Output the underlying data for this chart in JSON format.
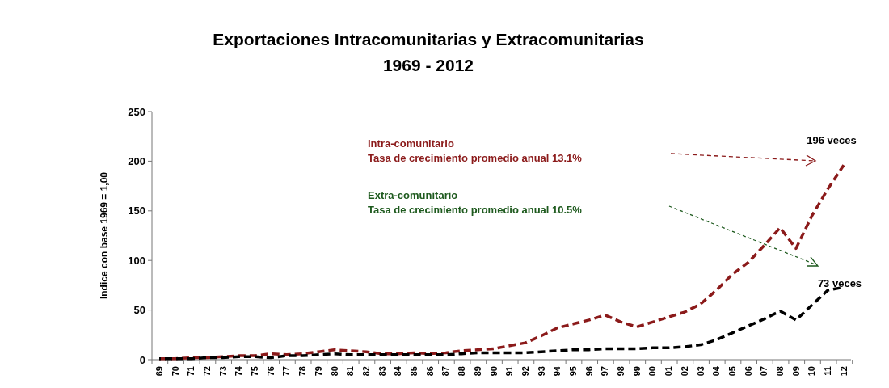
{
  "chart_data": {
    "type": "line",
    "title": "Exportaciones Intracomunitarias y Extracomunitarias",
    "subtitle": "1969 - 2012",
    "ylabel": "Indice con base 1969 = 1,00",
    "categories": [
      "69",
      "70",
      "71",
      "72",
      "73",
      "74",
      "75",
      "76",
      "77",
      "78",
      "79",
      "80",
      "81",
      "82",
      "83",
      "84",
      "85",
      "86",
      "87",
      "88",
      "89",
      "90",
      "91",
      "92",
      "93",
      "94",
      "95",
      "96",
      "97",
      "98",
      "99",
      "00",
      "01",
      "02",
      "03",
      "04",
      "05",
      "06",
      "07",
      "08",
      "09",
      "10",
      "11",
      "12"
    ],
    "series": [
      {
        "color": "#8b1a1a",
        "values": [
          1,
          1,
          2,
          2,
          3,
          4,
          4,
          6,
          5,
          6,
          8,
          10,
          9,
          8,
          6,
          6,
          7,
          6,
          7,
          9,
          10,
          11,
          14,
          17,
          24,
          32,
          36,
          40,
          45,
          38,
          33,
          38,
          43,
          48,
          56,
          70,
          86,
          98,
          115,
          133,
          112,
          145,
          172,
          196
        ]
      },
      {
        "color": "#000000",
        "values": [
          1,
          1,
          1,
          2,
          2,
          3,
          3,
          2,
          4,
          4,
          5,
          6,
          5,
          5,
          5,
          5,
          5,
          5,
          5,
          6,
          7,
          7,
          7,
          7,
          8,
          9,
          10,
          10,
          11,
          11,
          11,
          12,
          12,
          13,
          15,
          20,
          27,
          34,
          41,
          49,
          40,
          55,
          70,
          73
        ]
      }
    ],
    "ylim": [
      0,
      250
    ],
    "yticks": [
      0,
      50,
      100,
      150,
      200,
      250
    ],
    "grid": false,
    "marker": "none",
    "line_style": "dashed",
    "annotations": [
      "Intra-comunitario",
      "Tasa de crecimiento promedio anual  13.1%",
      "Extra-comunitario",
      "Tasa de crecimiento promedio anual 10.5%",
      {
        "text": "196  veces",
        "x": "12",
        "y": 196
      },
      {
        "text": "73 veces",
        "x": "12",
        "y": 73
      }
    ]
  }
}
